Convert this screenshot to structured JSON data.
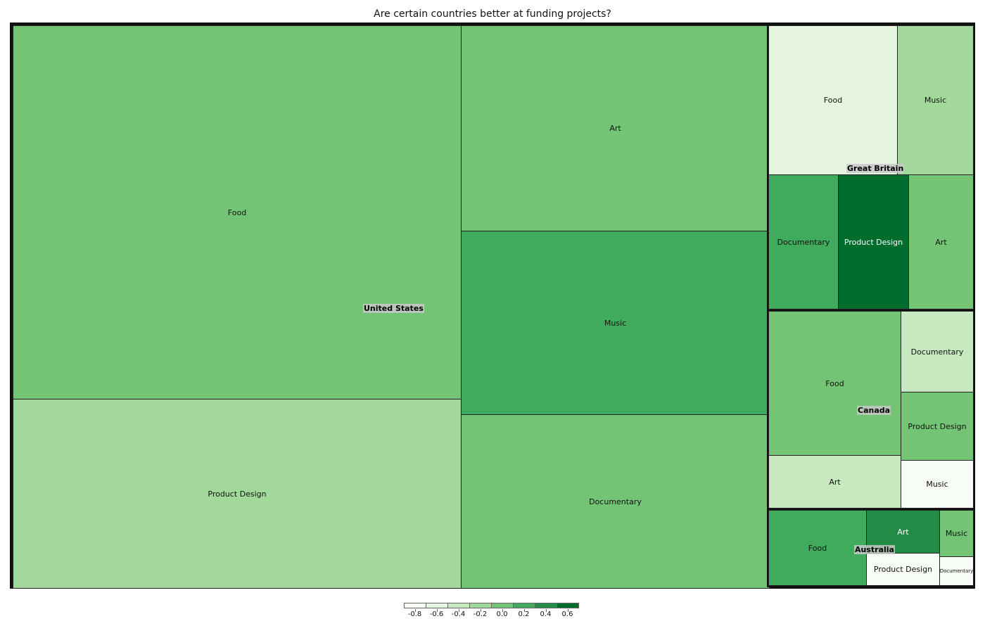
{
  "chart_data": {
    "type": "treemap",
    "title": "Are certain countries better at funding projects?",
    "groups": [
      {
        "name": "United States",
        "cells": [
          {
            "name": "Food",
            "size": 339100,
            "color": 0.06
          },
          {
            "name": "Product Design",
            "size": 173900,
            "color": -0.14
          },
          {
            "name": "Art",
            "size": 127800,
            "color": 0.06
          },
          {
            "name": "Music",
            "size": 114000,
            "color": 0.16
          },
          {
            "name": "Documentary",
            "size": 110000,
            "color": 0.06
          }
        ]
      },
      {
        "name": "Great Britain",
        "cells": [
          {
            "name": "Food",
            "size": 39200,
            "color": -0.72
          },
          {
            "name": "Music",
            "size": 23500,
            "color": -0.3
          },
          {
            "name": "Documentary",
            "size": 19300,
            "color": 0.16
          },
          {
            "name": "Product Design",
            "size": 19300,
            "color": 0.7
          },
          {
            "name": "Art",
            "size": 18300,
            "color": 0.02
          }
        ]
      },
      {
        "name": "Canada",
        "cells": [
          {
            "name": "Food",
            "size": 38500,
            "color": 0.06
          },
          {
            "name": "Art",
            "size": 14100,
            "color": -0.4
          },
          {
            "name": "Documentary",
            "size": 12300,
            "color": -0.5
          },
          {
            "name": "Product Design",
            "size": 10400,
            "color": 0.02
          },
          {
            "name": "Music",
            "size": 7600,
            "color": -0.86
          }
        ]
      },
      {
        "name": "Australia",
        "cells": [
          {
            "name": "Food",
            "size": 15900,
            "color": 0.14
          },
          {
            "name": "Art",
            "size": 7200,
            "color": 0.46
          },
          {
            "name": "Product Design",
            "size": 6100,
            "color": -0.98
          },
          {
            "name": "Music",
            "size": 3500,
            "color": 0.06
          },
          {
            "name": "Documentary",
            "size": 2600,
            "color": -0.96
          }
        ]
      }
    ],
    "color_scale": {
      "min": -1.0,
      "max": 0.8,
      "tick_labels": [
        "-0.8",
        "-0.6",
        "-0.4",
        "-0.2",
        "0.0",
        "0.2",
        "0.4",
        "0.6"
      ],
      "tick_values": [
        -0.8,
        -0.6,
        -0.4,
        -0.2,
        0.0,
        0.2,
        0.4,
        0.6
      ],
      "bin_colors": [
        "#f7fcf5",
        "#e5f5e0",
        "#c7e9c0",
        "#a1d99b",
        "#74c476",
        "#41ab5d",
        "#238b45",
        "#006d2c"
      ],
      "legend_placement": "bottom-center"
    }
  }
}
